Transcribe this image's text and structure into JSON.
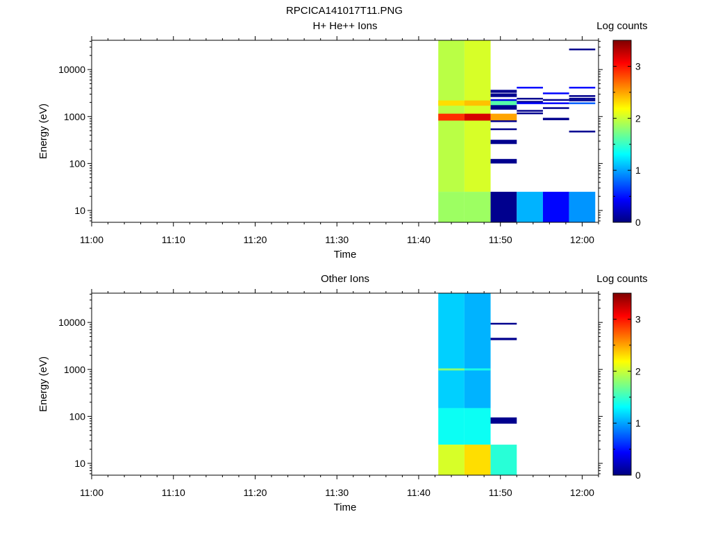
{
  "figure_title": "RPCICA141017T11.PNG",
  "chart_data": [
    {
      "type": "heatmap",
      "title": "H+ He++ Ions",
      "xlabel": "Time",
      "ylabel": "Energy (eV)",
      "x_tick_labels": [
        "11:00",
        "11:10",
        "11:20",
        "11:30",
        "11:40",
        "11:50",
        "12:00"
      ],
      "x_tick_minutes": [
        0,
        10,
        20,
        30,
        40,
        50,
        60
      ],
      "xlim_minutes": [
        0,
        62
      ],
      "y_scale": "log",
      "ylim": [
        5.6,
        42000
      ],
      "y_tick_labels": [
        "10",
        "100",
        "1000",
        "10000"
      ],
      "y_tick_values": [
        10,
        100,
        1000,
        10000
      ],
      "colorbar": {
        "label": "Log counts",
        "range": [
          0,
          3.5
        ],
        "tick_labels": [
          "0",
          "1",
          "2",
          "3"
        ],
        "tick_values": [
          0,
          1,
          2,
          3
        ]
      },
      "time_columns_minutes": [
        [
          42.4,
          45.6
        ],
        [
          45.6,
          48.8
        ],
        [
          48.8,
          52.0
        ],
        [
          52.0,
          55.2
        ],
        [
          55.2,
          58.4
        ],
        [
          58.4,
          61.6
        ]
      ],
      "energy_rows": [
        [
          25,
          42000,
          [
            1.95,
            2.05,
            null,
            null,
            null,
            null
          ]
        ],
        [
          1700,
          2200,
          [
            2.3,
            2.4,
            1.6,
            null,
            null,
            null
          ]
        ],
        [
          820,
          1150,
          [
            2.9,
            3.2,
            2.5,
            null,
            null,
            null
          ]
        ],
        [
          5.6,
          25,
          [
            1.85,
            1.85,
            0.05,
            1.05,
            0.45,
            0.95
          ]
        ],
        [
          3200,
          3700,
          [
            null,
            null,
            0.05,
            null,
            null,
            null
          ]
        ],
        [
          1400,
          1530,
          [
            null,
            null,
            0.05,
            null,
            null,
            null
          ]
        ],
        [
          780,
          830,
          [
            null,
            null,
            0.05,
            null,
            null,
            null
          ]
        ],
        [
          520,
          560,
          [
            null,
            null,
            0.05,
            null,
            null,
            null
          ]
        ],
        [
          2600,
          3100,
          [
            null,
            null,
            0.05,
            null,
            null,
            null
          ]
        ],
        [
          2150,
          2350,
          [
            null,
            null,
            0.35,
            null,
            null,
            null
          ]
        ],
        [
          1500,
          1750,
          [
            null,
            null,
            0.05,
            null,
            null,
            null
          ]
        ],
        [
          260,
          320,
          [
            null,
            null,
            0.05,
            null,
            null,
            null
          ]
        ],
        [
          100,
          125,
          [
            null,
            null,
            0.05,
            null,
            null,
            null
          ]
        ],
        [
          2400,
          2500,
          [
            null,
            null,
            null,
            0.05,
            null,
            0.05
          ]
        ],
        [
          1300,
          1380,
          [
            null,
            null,
            null,
            0.05,
            null,
            null
          ]
        ],
        [
          4000,
          4300,
          [
            null,
            null,
            null,
            0.45,
            null,
            null
          ]
        ],
        [
          2000,
          2150,
          [
            null,
            null,
            null,
            0.05,
            null,
            null
          ]
        ],
        [
          1850,
          2000,
          [
            null,
            null,
            null,
            0.45,
            0.45,
            0.75
          ]
        ],
        [
          1150,
          1220,
          [
            null,
            null,
            null,
            0.05,
            null,
            null
          ]
        ],
        [
          2250,
          2350,
          [
            null,
            null,
            null,
            null,
            0.05,
            null
          ]
        ],
        [
          1500,
          1580,
          [
            null,
            null,
            null,
            null,
            0.05,
            null
          ]
        ],
        [
          880,
          940,
          [
            null,
            null,
            null,
            null,
            0.05,
            null
          ]
        ],
        [
          3150,
          3250,
          [
            null,
            null,
            null,
            null,
            0.45,
            null
          ]
        ],
        [
          850,
          910,
          [
            null,
            null,
            null,
            null,
            0.05,
            null
          ]
        ],
        [
          26000,
          28000,
          [
            null,
            null,
            null,
            null,
            null,
            0.05
          ]
        ],
        [
          4000,
          4300,
          [
            null,
            null,
            null,
            null,
            null,
            0.45
          ]
        ],
        [
          2650,
          2850,
          [
            null,
            null,
            null,
            null,
            null,
            0.05
          ]
        ],
        [
          2150,
          2300,
          [
            null,
            null,
            null,
            null,
            null,
            0.05
          ]
        ],
        [
          470,
          500,
          [
            null,
            null,
            null,
            null,
            null,
            0.05
          ]
        ]
      ]
    },
    {
      "type": "heatmap",
      "title": "Other Ions",
      "xlabel": "Time",
      "ylabel": "Energy (eV)",
      "x_tick_labels": [
        "11:00",
        "11:10",
        "11:20",
        "11:30",
        "11:40",
        "11:50",
        "12:00"
      ],
      "x_tick_minutes": [
        0,
        10,
        20,
        30,
        40,
        50,
        60
      ],
      "xlim_minutes": [
        0,
        62
      ],
      "y_scale": "log",
      "ylim": [
        5.6,
        42000
      ],
      "y_tick_labels": [
        "10",
        "100",
        "1000",
        "10000"
      ],
      "y_tick_values": [
        10,
        100,
        1000,
        10000
      ],
      "colorbar": {
        "label": "Log counts",
        "range": [
          0,
          3.5
        ],
        "tick_labels": [
          "0",
          "1",
          "2",
          "3"
        ],
        "tick_values": [
          0,
          1,
          2,
          3
        ]
      },
      "time_columns_minutes": [
        [
          42.4,
          45.6
        ],
        [
          45.6,
          48.8
        ],
        [
          48.8,
          52.0
        ]
      ],
      "energy_rows": [
        [
          150,
          42000,
          [
            1.15,
            1.05,
            null
          ]
        ],
        [
          25,
          150,
          [
            1.35,
            1.35,
            null
          ]
        ],
        [
          950,
          1050,
          [
            1.8,
            1.4,
            null
          ]
        ],
        [
          5.6,
          25,
          [
            2.05,
            2.3,
            1.45
          ]
        ],
        [
          9200,
          9800,
          [
            null,
            null,
            0.05
          ]
        ],
        [
          4200,
          4700,
          [
            null,
            null,
            0.05
          ]
        ],
        [
          70,
          95,
          [
            null,
            null,
            0.05
          ]
        ]
      ]
    }
  ]
}
